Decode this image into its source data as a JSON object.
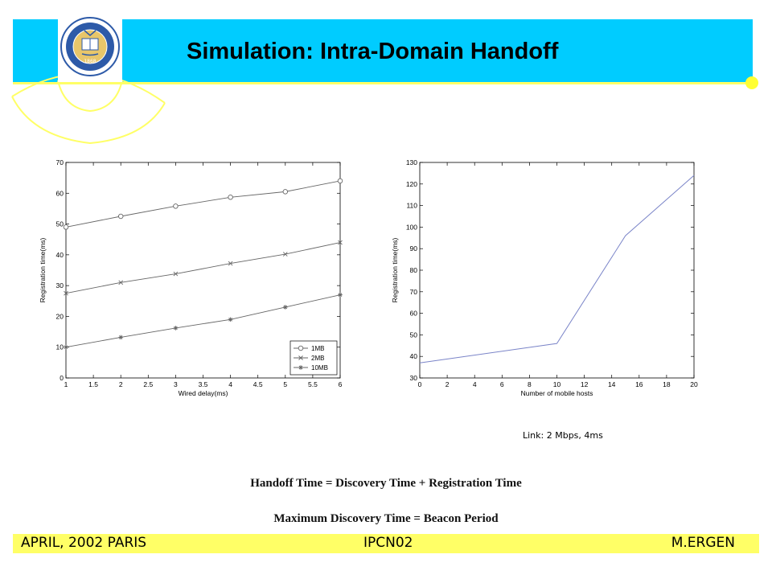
{
  "slide": {
    "title": "Simulation: Intra-Domain Handoff",
    "seal": {
      "text_top": "THE UNIVERSITY OF CALIFORNIA",
      "year": "1868",
      "colors": {
        "ring": "#2d5aa8",
        "gold": "#e8c66a"
      }
    },
    "note": "Link: 2 Mbps, 4ms",
    "formula1": "Handoff Time = Discovery Time + Registration Time",
    "formula2": "Maximum Discovery Time = Beacon Period",
    "footer": {
      "left": "APRIL, 2002 PARIS",
      "center": "IPCN02",
      "right": "M.ERGEN"
    },
    "colors": {
      "header": "#00ccff",
      "accent": "#ffff66",
      "footer": "#ffff66"
    }
  },
  "chart_data": [
    {
      "type": "line",
      "xlabel": "Wired delay(ms)",
      "ylabel": "Registration time(ms)",
      "xlim": [
        1,
        6
      ],
      "ylim": [
        0,
        70
      ],
      "x_ticks": [
        "1",
        "1.5",
        "2",
        "2.5",
        "3",
        "3.5",
        "4",
        "4.5",
        "5",
        "5.5",
        "6"
      ],
      "y_ticks": [
        "0",
        "10",
        "20",
        "30",
        "40",
        "50",
        "60",
        "70"
      ],
      "x": [
        1,
        2,
        3,
        4,
        5,
        6
      ],
      "series": [
        {
          "name": "1MB",
          "values": [
            49,
            52.5,
            55.8,
            58.7,
            60.5,
            64
          ],
          "marker": "circle"
        },
        {
          "name": "2MB",
          "values": [
            27.5,
            31,
            33.8,
            37.2,
            40.2,
            44
          ],
          "marker": "x"
        },
        {
          "name": "10MB",
          "values": [
            10,
            13.2,
            16.2,
            19,
            23,
            27
          ],
          "marker": "star"
        }
      ],
      "legend": "bottom-right",
      "grid": false
    },
    {
      "type": "line",
      "xlabel": "Number of mobile hosts",
      "ylabel": "Registration time(ms)",
      "xlim": [
        0,
        20
      ],
      "ylim": [
        30,
        130
      ],
      "x_ticks": [
        "0",
        "2",
        "4",
        "6",
        "8",
        "10",
        "12",
        "14",
        "16",
        "18",
        "20"
      ],
      "y_ticks": [
        "30",
        "40",
        "50",
        "60",
        "70",
        "80",
        "90",
        "100",
        "110",
        "120",
        "130"
      ],
      "x": [
        0,
        10,
        15,
        20
      ],
      "series": [
        {
          "values": [
            37,
            46,
            96,
            124
          ]
        }
      ],
      "grid": false
    }
  ]
}
